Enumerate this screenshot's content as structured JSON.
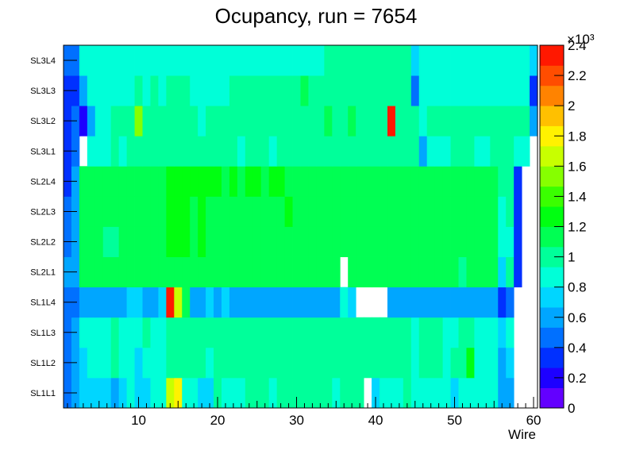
{
  "chart_data": {
    "type": "heatmap",
    "title": "Ocupancy, run = 7654",
    "xlabel": "Wire",
    "ylabel": "",
    "xlim": [
      0.5,
      60.5
    ],
    "x_ticks": [
      10,
      20,
      30,
      40,
      50,
      60
    ],
    "rows": [
      "SL1L1",
      "SL1L2",
      "SL1L3",
      "SL1L4",
      "SL2L1",
      "SL2L2",
      "SL2L3",
      "SL2L4",
      "SL3L1",
      "SL3L2",
      "SL3L3",
      "SL3L4"
    ],
    "color_scale": {
      "min": 0,
      "max": 2400,
      "multiplier_label": "×10³",
      "tick_values": [
        0,
        0.2,
        0.4,
        0.6,
        0.8,
        1,
        1.2,
        1.4,
        1.6,
        1.8,
        2,
        2.2,
        2.4
      ],
      "colors": [
        "#6300ff",
        "#1d00ff",
        "#0030ff",
        "#0070ff",
        "#00a6ff",
        "#00d6ff",
        "#00ffd8",
        "#00ff9a",
        "#00ff53",
        "#00ff11",
        "#3aff00",
        "#86ff00",
        "#c8ff00",
        "#fff200",
        "#ffc000",
        "#ff8300",
        "#ff4d00",
        "#ff1800"
      ]
    },
    "values": [
      [
        430,
        540,
        760,
        780,
        780,
        780,
        650,
        780,
        800,
        780,
        780,
        800,
        930,
        1700,
        1800,
        800,
        800,
        760,
        780,
        950,
        900,
        920,
        930,
        950,
        950,
        950,
        930,
        950,
        950,
        950,
        950,
        950,
        960,
        940,
        930,
        940,
        950,
        960,
        0,
        760,
        920,
        900,
        860,
        940,
        900,
        880,
        880,
        880,
        830,
        780,
        830,
        880,
        880,
        880,
        820,
        580,
        560,
        0,
        0,
        0
      ],
      [
        430,
        630,
        780,
        800,
        800,
        800,
        950,
        800,
        920,
        780,
        920,
        900,
        920,
        950,
        1000,
        950,
        1000,
        980,
        900,
        980,
        980,
        950,
        980,
        980,
        950,
        980,
        980,
        950,
        980,
        950,
        980,
        980,
        950,
        950,
        950,
        950,
        950,
        950,
        980,
        950,
        980,
        950,
        950,
        950,
        880,
        950,
        960,
        950,
        920,
        980,
        950,
        1200,
        800,
        820,
        820,
        570,
        760,
        0,
        0,
        0
      ],
      [
        430,
        640,
        800,
        800,
        880,
        800,
        950,
        880,
        920,
        930,
        950,
        900,
        920,
        950,
        1050,
        950,
        1050,
        950,
        950,
        980,
        980,
        950,
        980,
        980,
        980,
        980,
        980,
        950,
        980,
        950,
        980,
        980,
        950,
        950,
        950,
        950,
        950,
        950,
        950,
        950,
        950,
        950,
        950,
        950,
        880,
        950,
        950,
        950,
        900,
        880,
        950,
        950,
        800,
        860,
        860,
        780,
        820,
        0,
        0,
        0
      ],
      [
        440,
        430,
        600,
        630,
        630,
        630,
        650,
        600,
        670,
        700,
        650,
        650,
        670,
        2300,
        1600,
        1100,
        650,
        650,
        700,
        640,
        700,
        640,
        640,
        640,
        630,
        630,
        640,
        650,
        650,
        650,
        650,
        630,
        630,
        650,
        650,
        800,
        780,
        0,
        0,
        0,
        0,
        640,
        630,
        630,
        640,
        640,
        640,
        550,
        550,
        550,
        550,
        550,
        550,
        550,
        550,
        300,
        480,
        0,
        0,
        0
      ],
      [
        620,
        640,
        1080,
        1100,
        1070,
        1080,
        1080,
        1080,
        1080,
        1080,
        1120,
        1100,
        1100,
        1120,
        1120,
        1120,
        1120,
        1120,
        1120,
        1100,
        1100,
        1130,
        1120,
        1120,
        1120,
        1100,
        1100,
        1120,
        1100,
        1080,
        1080,
        1100,
        1100,
        1100,
        1100,
        0,
        1120,
        1100,
        1100,
        1100,
        1100,
        1100,
        1100,
        1100,
        1100,
        1100,
        1100,
        1100,
        1080,
        1080,
        1050,
        1080,
        1080,
        1100,
        1080,
        760,
        1020,
        300,
        0,
        0
      ],
      [
        420,
        640,
        1080,
        1100,
        1100,
        1050,
        1020,
        1100,
        1100,
        1100,
        1120,
        1100,
        1100,
        1200,
        1200,
        1200,
        1120,
        1200,
        1150,
        1180,
        1120,
        1150,
        1100,
        1150,
        1170,
        1120,
        1150,
        1150,
        1120,
        1120,
        1100,
        1130,
        1120,
        1150,
        1150,
        1100,
        1150,
        1140,
        1150,
        1130,
        1120,
        1180,
        1150,
        1100,
        1120,
        1130,
        1120,
        1100,
        1100,
        1080,
        1080,
        1080,
        1100,
        1080,
        1100,
        820,
        850,
        300,
        0,
        0
      ],
      [
        420,
        640,
        1080,
        1100,
        1100,
        1080,
        1100,
        1100,
        1100,
        1100,
        1120,
        1080,
        1120,
        1200,
        1200,
        1200,
        1120,
        1200,
        1150,
        1180,
        1120,
        1150,
        1100,
        1150,
        1170,
        1120,
        1150,
        1150,
        1200,
        1120,
        1100,
        1130,
        1120,
        1150,
        1150,
        1100,
        1150,
        1140,
        1150,
        1130,
        1120,
        1180,
        1150,
        1100,
        1120,
        1130,
        1120,
        1100,
        1100,
        1080,
        1080,
        1080,
        1100,
        1080,
        1080,
        820,
        1060,
        300,
        0,
        0
      ],
      [
        340,
        650,
        1100,
        1100,
        1130,
        1130,
        1130,
        1130,
        1130,
        1130,
        1150,
        1130,
        1150,
        1200,
        1200,
        1200,
        1200,
        1200,
        1200,
        1200,
        1150,
        1200,
        1150,
        1200,
        1200,
        1150,
        1200,
        1200,
        1180,
        1150,
        1150,
        1180,
        1150,
        1180,
        1180,
        1150,
        1150,
        1180,
        1150,
        1150,
        1150,
        1180,
        1150,
        1120,
        1120,
        1120,
        1150,
        1120,
        1120,
        1120,
        1080,
        1080,
        1080,
        1080,
        1130,
        940,
        1060,
        300,
        0,
        0
      ],
      [
        380,
        400,
        0,
        880,
        920,
        920,
        950,
        920,
        950,
        950,
        980,
        950,
        950,
        1000,
        1020,
        1000,
        950,
        1000,
        1050,
        950,
        950,
        950,
        920,
        950,
        1020,
        950,
        920,
        1020,
        1000,
        950,
        1000,
        1050,
        1000,
        1000,
        1000,
        1000,
        1050,
        1000,
        1050,
        1000,
        1000,
        1000,
        1000,
        980,
        1000,
        600,
        900,
        920,
        920,
        950,
        950,
        950,
        920,
        920,
        950,
        950,
        950,
        880,
        850,
        0
      ],
      [
        300,
        480,
        260,
        640,
        920,
        930,
        950,
        960,
        1000,
        1500,
        950,
        980,
        1000,
        980,
        1000,
        950,
        1000,
        880,
        1000,
        980,
        1000,
        980,
        960,
        950,
        1000,
        1000,
        1000,
        1050,
        1000,
        1030,
        1060,
        1050,
        1050,
        1100,
        1060,
        1000,
        1080,
        1000,
        1000,
        1000,
        1000,
        2370,
        950,
        1050,
        1050,
        850,
        1000,
        1000,
        960,
        980,
        1000,
        1000,
        980,
        1000,
        1000,
        1000,
        1000,
        960,
        980,
        580
      ],
      [
        330,
        350,
        650,
        880,
        880,
        880,
        880,
        920,
        920,
        950,
        920,
        950,
        920,
        950,
        950,
        950,
        920,
        920,
        880,
        920,
        920,
        950,
        950,
        980,
        950,
        950,
        950,
        950,
        950,
        950,
        1080,
        1050,
        1050,
        1050,
        1050,
        1050,
        1050,
        1050,
        1050,
        1050,
        1050,
        1050,
        1050,
        1050,
        480,
        900,
        880,
        900,
        880,
        900,
        900,
        880,
        900,
        920,
        920,
        920,
        900,
        900,
        880,
        340
      ],
      [
        450,
        520,
        800,
        800,
        800,
        850,
        850,
        850,
        880,
        880,
        880,
        880,
        880,
        880,
        920,
        920,
        880,
        880,
        880,
        900,
        920,
        900,
        920,
        920,
        920,
        900,
        900,
        920,
        920,
        920,
        920,
        920,
        920,
        950,
        950,
        950,
        950,
        950,
        950,
        950,
        950,
        950,
        950,
        950,
        760,
        800,
        880,
        880,
        880,
        880,
        880,
        880,
        880,
        880,
        880,
        880,
        880,
        880,
        850,
        700
      ]
    ]
  }
}
